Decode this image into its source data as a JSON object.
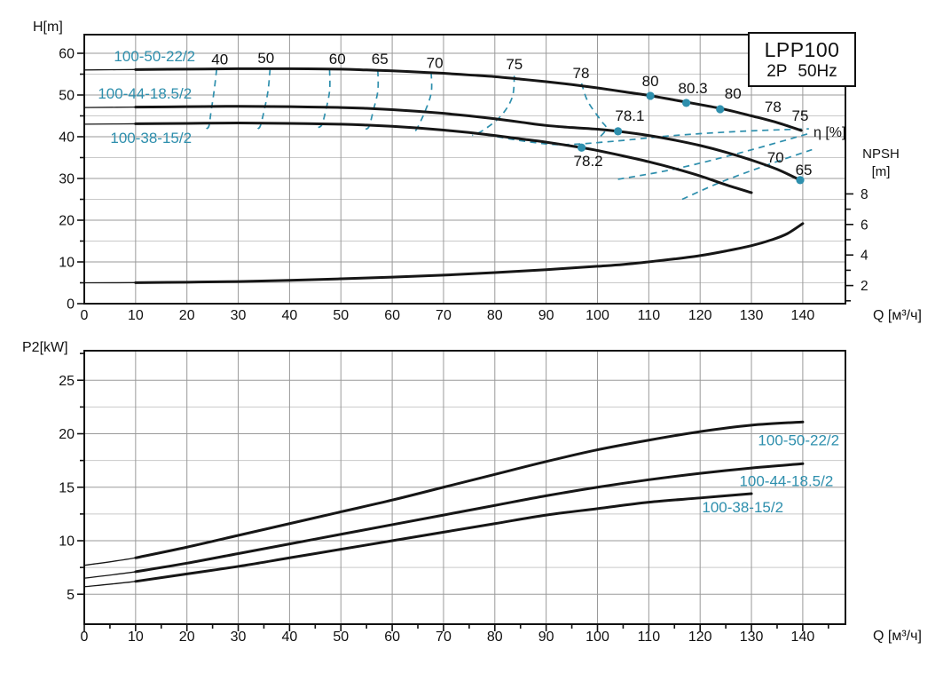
{
  "title_box": {
    "model": "LPP100",
    "spec": "2P 50Hz"
  },
  "colors": {
    "teal": "#2e8fad",
    "curve": "#161616",
    "grid_minor": "#c9c9c9",
    "grid_major": "#9a9a9a",
    "frame": "#111111",
    "text": "#111111"
  },
  "chart_data": [
    {
      "type": "line",
      "name": "head-npsh-chart",
      "ylabel": "H[m]",
      "xlabel": "Q [м³/ч]",
      "eta_label": "η [%]",
      "right_axis": {
        "title": "NPSH",
        "unit": "[m]",
        "tick_labels": [
          2,
          4,
          6,
          8
        ],
        "tick_minors": [
          1,
          3,
          5,
          7
        ]
      },
      "xlim": [
        0,
        148.3
      ],
      "ylim": [
        0,
        64.5
      ],
      "x_tick_labels": [
        0,
        10,
        20,
        30,
        40,
        50,
        60,
        70,
        80,
        90,
        100,
        110,
        120,
        130,
        140
      ],
      "y_tick_labels": [
        0,
        10,
        20,
        30,
        40,
        50,
        60
      ],
      "y_minor_grid": [
        5,
        15,
        25,
        35,
        45,
        55
      ],
      "series": [
        {
          "name": "100-50-22/2",
          "axis": "H",
          "points": [
            [
              0,
              56
            ],
            [
              10,
              56.1
            ],
            [
              20,
              56.2
            ],
            [
              30,
              56.3
            ],
            [
              40,
              56.3
            ],
            [
              50,
              56.2
            ],
            [
              55,
              56
            ],
            [
              60,
              55.8
            ],
            [
              65,
              55.5
            ],
            [
              70,
              55.2
            ],
            [
              75,
              54.8
            ],
            [
              80,
              54.4
            ],
            [
              85,
              53.8
            ],
            [
              90,
              53.2
            ],
            [
              95,
              52.5
            ],
            [
              100,
              51.7
            ],
            [
              105,
              50.8
            ],
            [
              110,
              49.9
            ],
            [
              115,
              48.8
            ],
            [
              120,
              47.7
            ],
            [
              125,
              46.5
            ],
            [
              130,
              45
            ],
            [
              135,
              43.4
            ],
            [
              139.7,
              41.5
            ]
          ]
        },
        {
          "name": "100-44-18.5/2",
          "axis": "H",
          "points": [
            [
              0,
              47
            ],
            [
              10,
              47.1
            ],
            [
              20,
              47.2
            ],
            [
              30,
              47.3
            ],
            [
              40,
              47.2
            ],
            [
              50,
              47
            ],
            [
              55,
              46.8
            ],
            [
              60,
              46.5
            ],
            [
              65,
              46.1
            ],
            [
              70,
              45.6
            ],
            [
              75,
              45
            ],
            [
              80,
              44.3
            ],
            [
              85,
              43.5
            ],
            [
              90,
              42.7
            ],
            [
              95,
              42.2
            ],
            [
              100,
              41.8
            ],
            [
              104,
              41.3
            ],
            [
              110,
              40.3
            ],
            [
              115,
              39.2
            ],
            [
              120,
              37.9
            ],
            [
              125,
              36.3
            ],
            [
              130,
              34.4
            ],
            [
              135,
              32.2
            ],
            [
              139.5,
              29.6
            ]
          ]
        },
        {
          "name": "100-38-15/2",
          "axis": "H",
          "points": [
            [
              0,
              43
            ],
            [
              10,
              43.1
            ],
            [
              20,
              43.2
            ],
            [
              30,
              43.3
            ],
            [
              40,
              43.2
            ],
            [
              50,
              43
            ],
            [
              55,
              42.8
            ],
            [
              60,
              42.5
            ],
            [
              65,
              42.1
            ],
            [
              70,
              41.6
            ],
            [
              75,
              41
            ],
            [
              80,
              40.3
            ],
            [
              85,
              39.5
            ],
            [
              90,
              38.7
            ],
            [
              96.9,
              37.4
            ],
            [
              100,
              36.7
            ],
            [
              105,
              35.4
            ],
            [
              110,
              34
            ],
            [
              115,
              32.4
            ],
            [
              120,
              30.6
            ],
            [
              125,
              28.5
            ],
            [
              130,
              26.6
            ]
          ]
        },
        {
          "name": "NPSH",
          "axis": "npsh",
          "points": [
            [
              0,
              2.18
            ],
            [
              10,
              2.19
            ],
            [
              20,
              2.22
            ],
            [
              30,
              2.26
            ],
            [
              40,
              2.34
            ],
            [
              50,
              2.44
            ],
            [
              60,
              2.55
            ],
            [
              70,
              2.68
            ],
            [
              80,
              2.85
            ],
            [
              90,
              3.04
            ],
            [
              100,
              3.26
            ],
            [
              105,
              3.38
            ],
            [
              110,
              3.55
            ],
            [
              115,
              3.74
            ],
            [
              120,
              3.96
            ],
            [
              125,
              4.26
            ],
            [
              130,
              4.61
            ],
            [
              134,
              5.0
            ],
            [
              137,
              5.4
            ],
            [
              140,
              6.06
            ]
          ]
        }
      ],
      "efficiency_contours": {
        "rising": [
          {
            "value": "40",
            "points": [
              [
                25.8,
                56.2
              ],
              [
                25.3,
                51
              ],
              [
                24.7,
                46
              ],
              [
                24.3,
                42.6
              ],
              [
                23.8,
                41.9
              ]
            ]
          },
          {
            "value": "50",
            "points": [
              [
                36.2,
                56.2
              ],
              [
                35.8,
                51
              ],
              [
                35,
                46
              ],
              [
                34.3,
                42.6
              ],
              [
                33.8,
                41.9
              ]
            ]
          },
          {
            "value": "60",
            "points": [
              [
                47.8,
                56.1
              ],
              [
                47.8,
                51
              ],
              [
                47,
                46
              ],
              [
                46.3,
                42.9
              ],
              [
                45.6,
                42.2
              ]
            ]
          },
          {
            "value": "65",
            "points": [
              [
                57.2,
                55.9
              ],
              [
                57.2,
                51
              ],
              [
                56.3,
                46.2
              ],
              [
                55.5,
                42.5
              ],
              [
                54.8,
                41.8
              ]
            ]
          },
          {
            "value": "70",
            "points": [
              [
                67.6,
                55.4
              ],
              [
                67.6,
                50.5
              ],
              [
                66.3,
                45.8
              ],
              [
                64.8,
                41.9
              ],
              [
                64.2,
                41.2
              ]
            ]
          },
          {
            "value": "75",
            "points": [
              [
                83.8,
                54.6
              ],
              [
                83.4,
                49.5
              ],
              [
                81.2,
                45
              ],
              [
                77.8,
                41.6
              ],
              [
                75.6,
                40.3
              ]
            ]
          },
          {
            "value": "78",
            "points": [
              [
                96.9,
                52.8
              ],
              [
                98.1,
                48.5
              ],
              [
                100.6,
                44
              ],
              [
                101.7,
                41.9
              ],
              [
                100,
                39.4
              ]
            ]
          }
        ],
        "falling": [
          {
            "value": "78",
            "points": [
              [
                76.2,
                40.9
              ],
              [
                86,
                38.9
              ],
              [
                93,
                38.1
              ],
              [
                103,
                38.9
              ],
              [
                115,
                40.3
              ],
              [
                128,
                41.3
              ],
              [
                141.2,
                41.9
              ]
            ]
          },
          {
            "value": "70",
            "points": [
              [
                104,
                29.8
              ],
              [
                115.2,
                32.3
              ],
              [
                128,
                36.2
              ],
              [
                141.3,
                40.8
              ]
            ]
          },
          {
            "value": "65",
            "points": [
              [
                116.5,
                25
              ],
              [
                124,
                29.1
              ],
              [
                133,
                33.2
              ],
              [
                141.8,
                36.9
              ]
            ]
          }
        ]
      },
      "efficiency_points": [
        {
          "label": "80",
          "q": 110.3,
          "h": 49.8
        },
        {
          "label": "80.3",
          "q": 117.3,
          "h": 48.1
        },
        {
          "label": "80",
          "q": 123.9,
          "h": 46.6
        },
        {
          "label": "78.1",
          "q": 104,
          "h": 41.3
        },
        {
          "label": "78.2",
          "q": 96.9,
          "h": 37.4
        },
        {
          "label": "65",
          "q": 139.5,
          "h": 29.6
        }
      ],
      "annotations": [
        {
          "text": "40",
          "q": 26.4,
          "h": 58.6
        },
        {
          "text": "50",
          "q": 35.4,
          "h": 58.9
        },
        {
          "text": "60",
          "q": 49.3,
          "h": 58.7
        },
        {
          "text": "65",
          "q": 57.6,
          "h": 58.7
        },
        {
          "text": "70",
          "q": 68.3,
          "h": 57.8
        },
        {
          "text": "75",
          "q": 83.8,
          "h": 57.4
        },
        {
          "text": "78",
          "q": 96.8,
          "h": 55.3
        },
        {
          "text": "80",
          "q": 110.3,
          "h": 53.4
        },
        {
          "text": "80.3",
          "q": 118.6,
          "h": 51.7
        },
        {
          "text": "80",
          "q": 126.4,
          "h": 50.4
        },
        {
          "text": "78",
          "q": 134.2,
          "h": 47.2
        },
        {
          "text": "75",
          "q": 139.5,
          "h": 45.1
        },
        {
          "text": "70",
          "q": 134.7,
          "h": 35.1
        },
        {
          "text": "65",
          "q": 140.2,
          "h": 32.1
        },
        {
          "text": "78.1",
          "q": 106.3,
          "h": 45.1
        },
        {
          "text": "78.2",
          "q": 98.2,
          "h": 34.3
        }
      ],
      "series_labels": [
        {
          "text": "100-50-22/2",
          "q": 13.7,
          "h": 59.4
        },
        {
          "text": "100-44-18.5/2",
          "q": 11.8,
          "h": 50.4
        },
        {
          "text": "100-38-15/2",
          "q": 13.0,
          "h": 39.8
        }
      ]
    },
    {
      "type": "line",
      "name": "power-chart",
      "ylabel": "P2[kW]",
      "xlabel": "Q [м³/ч]",
      "xlim": [
        0,
        148.3
      ],
      "ylim": [
        2.2,
        27.8
      ],
      "x_tick_labels": [
        0,
        10,
        20,
        30,
        40,
        50,
        60,
        70,
        80,
        90,
        100,
        110,
        120,
        130,
        140
      ],
      "y_tick_labels": [
        5,
        10,
        15,
        20,
        25
      ],
      "y_minor_grid": [
        7.5,
        12.5,
        17.5,
        22.5
      ],
      "series": [
        {
          "name": "100-50-22/2",
          "axis": "P",
          "points": [
            [
              0,
              7.7
            ],
            [
              10,
              8.4
            ],
            [
              20,
              9.4
            ],
            [
              30,
              10.5
            ],
            [
              40,
              11.6
            ],
            [
              50,
              12.7
            ],
            [
              60,
              13.8
            ],
            [
              70,
              15.0
            ],
            [
              80,
              16.2
            ],
            [
              90,
              17.4
            ],
            [
              100,
              18.5
            ],
            [
              110,
              19.4
            ],
            [
              120,
              20.2
            ],
            [
              130,
              20.8
            ],
            [
              140,
              21.1
            ]
          ]
        },
        {
          "name": "100-44-18.5/2",
          "axis": "P",
          "points": [
            [
              0,
              6.5
            ],
            [
              10,
              7.1
            ],
            [
              20,
              7.9
            ],
            [
              30,
              8.8
            ],
            [
              40,
              9.7
            ],
            [
              50,
              10.6
            ],
            [
              60,
              11.5
            ],
            [
              70,
              12.4
            ],
            [
              80,
              13.3
            ],
            [
              90,
              14.2
            ],
            [
              100,
              15.0
            ],
            [
              110,
              15.7
            ],
            [
              120,
              16.3
            ],
            [
              130,
              16.8
            ],
            [
              140,
              17.2
            ]
          ]
        },
        {
          "name": "100-38-15/2",
          "axis": "P",
          "points": [
            [
              0,
              5.7
            ],
            [
              10,
              6.2
            ],
            [
              20,
              6.9
            ],
            [
              30,
              7.6
            ],
            [
              40,
              8.4
            ],
            [
              50,
              9.2
            ],
            [
              60,
              10.0
            ],
            [
              70,
              10.8
            ],
            [
              80,
              11.6
            ],
            [
              90,
              12.4
            ],
            [
              100,
              13.0
            ],
            [
              110,
              13.6
            ],
            [
              120,
              14.0
            ],
            [
              130,
              14.4
            ]
          ]
        }
      ],
      "series_labels": [
        {
          "text": "100-50-22/2",
          "q": 139.2,
          "p": 19.4
        },
        {
          "text": "100-44-18.5/2",
          "q": 136.8,
          "p": 15.6
        },
        {
          "text": "100-38-15/2",
          "q": 128.3,
          "p": 13.15
        }
      ]
    }
  ]
}
